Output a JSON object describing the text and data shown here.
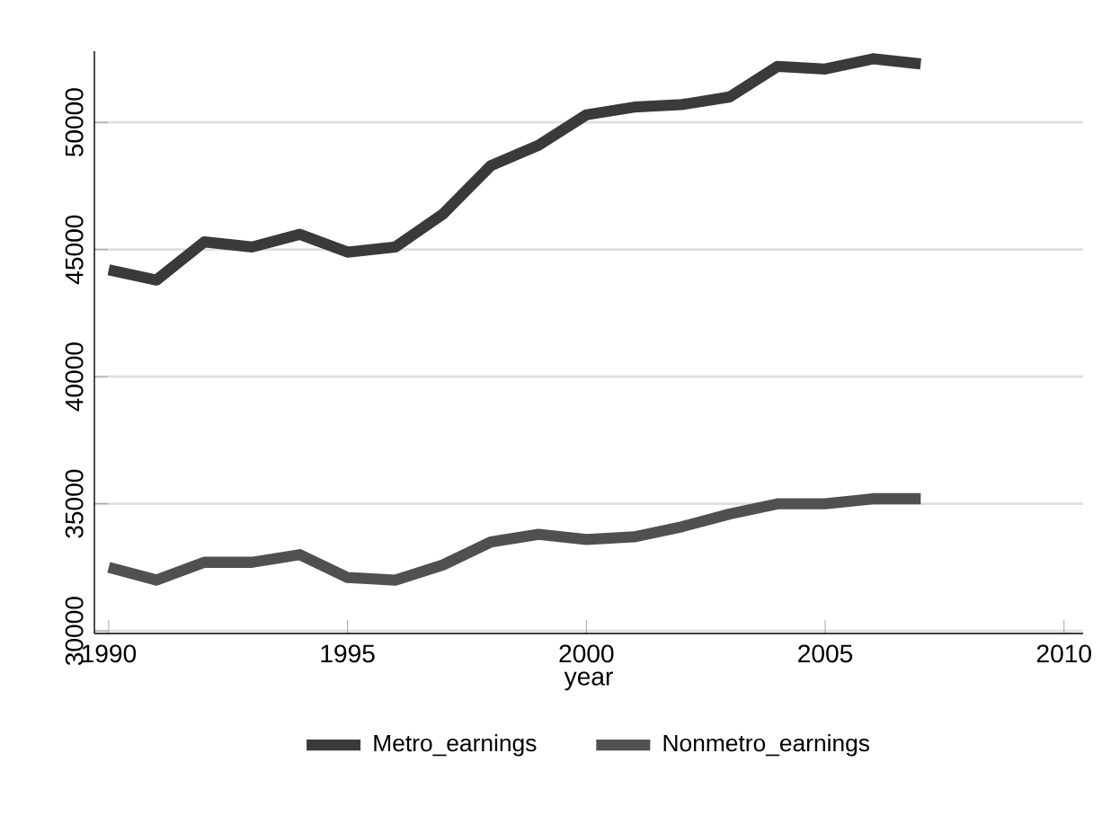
{
  "chart_data": {
    "type": "line",
    "xlabel": "year",
    "x": [
      1990,
      1991,
      1992,
      1993,
      1994,
      1995,
      1996,
      1997,
      1998,
      1999,
      2000,
      2001,
      2002,
      2003,
      2004,
      2005,
      2006,
      2007
    ],
    "series": [
      {
        "name": "Metro_earnings",
        "color": "#3a3a3a",
        "values": [
          44200,
          43800,
          45300,
          45100,
          45600,
          44900,
          45100,
          46400,
          48300,
          49100,
          50300,
          50600,
          50700,
          51000,
          52200,
          52100,
          52500,
          52300
        ]
      },
      {
        "name": "Nonmetro_earnings",
        "color": "#505050",
        "values": [
          32500,
          32000,
          32700,
          32700,
          33000,
          32100,
          32000,
          32600,
          33500,
          33800,
          33600,
          33700,
          34100,
          34600,
          35000,
          35000,
          35200,
          35200
        ]
      }
    ],
    "xlim": [
      1989.7,
      2010.4
    ],
    "ylim": [
      29900,
      52800
    ],
    "xticks": [
      1990,
      1995,
      2000,
      2005,
      2010
    ],
    "yticks": [
      30000,
      35000,
      40000,
      45000,
      50000
    ],
    "grid": "y",
    "legend": "bottom",
    "marker": "none",
    "line_style": "solid"
  }
}
